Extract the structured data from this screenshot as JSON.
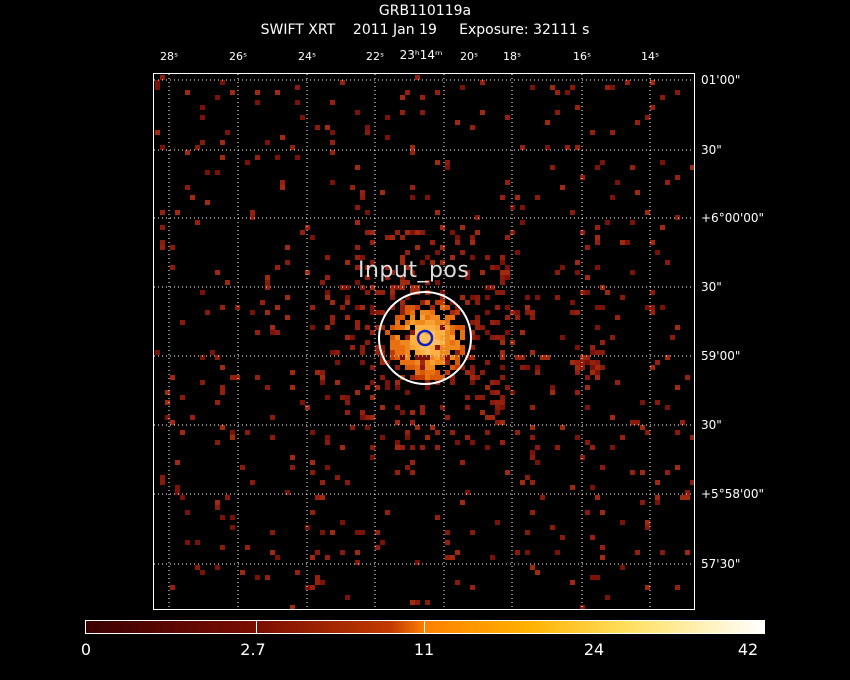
{
  "header": {
    "title": "GRB110119a",
    "subtitle": "SWIFT XRT    2011 Jan 19     Exposure: 32111 s"
  },
  "ra_axis": {
    "ticks": [
      "28ˢ",
      "26ˢ",
      "24ˢ",
      "22ˢ",
      "20ˢ",
      "18ˢ",
      "16ˢ",
      "14ˢ"
    ],
    "center": "23ʰ14ᵐ"
  },
  "dec_axis": {
    "ticks": [
      "01'00\"",
      "30\"",
      "+6°00'00\"",
      "30\"",
      "59'00\"",
      "30\"",
      "+5°58'00\"",
      "57'30\""
    ]
  },
  "source": {
    "label": "Input_pos"
  },
  "colorbar": {
    "labels": [
      "0",
      "2.7",
      "11",
      "24",
      "42"
    ]
  },
  "colors": {
    "background": "#000000",
    "grid": "#ffffff",
    "source_circle": "#ffffff",
    "position_marker": "#1020c0",
    "faint_pixel": "#8a1a0a"
  }
}
